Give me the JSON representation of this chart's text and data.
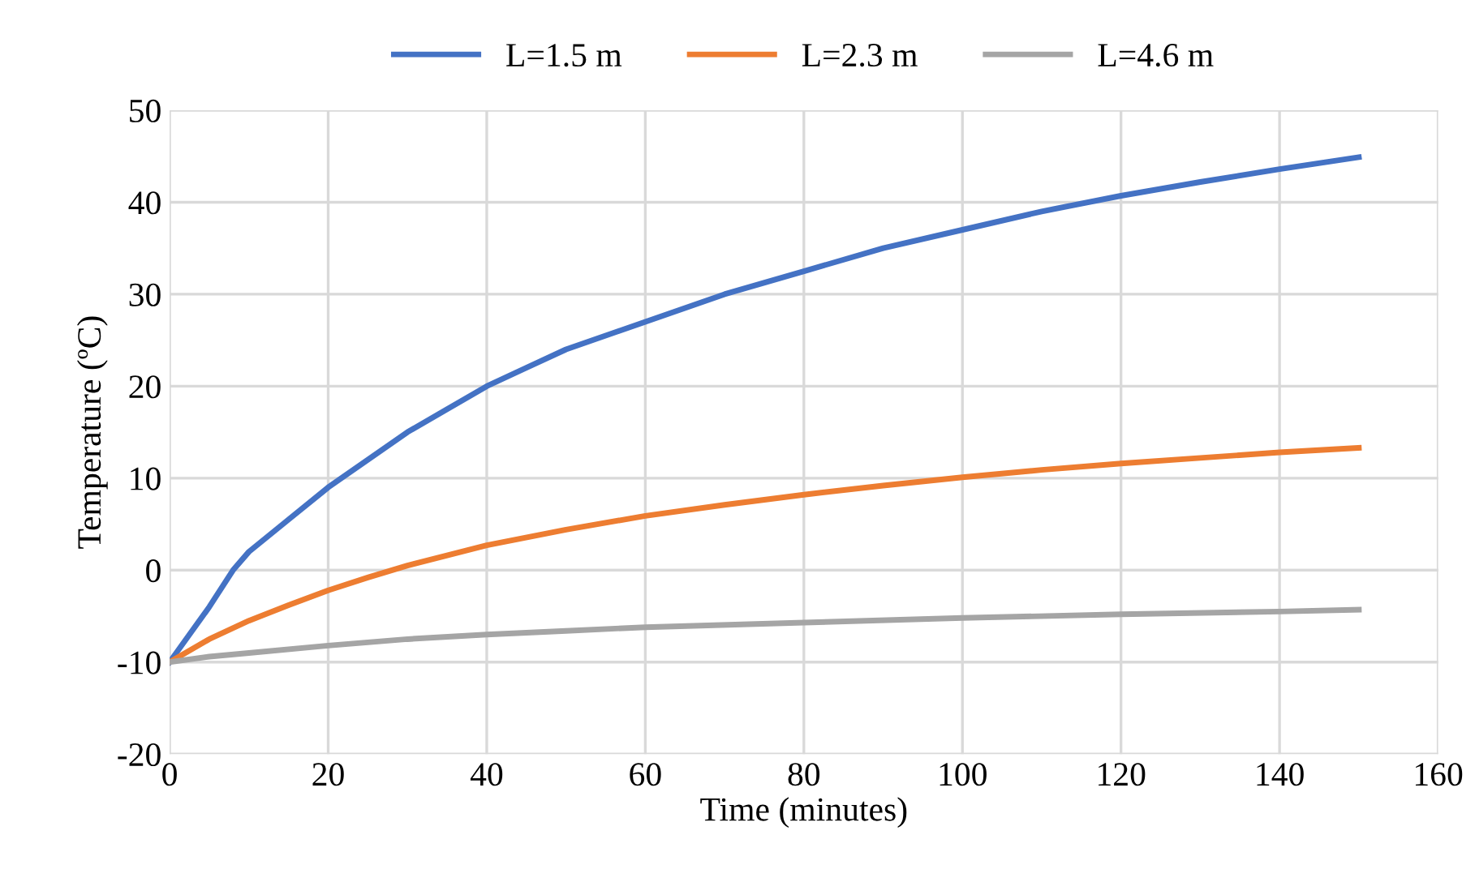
{
  "chart_data": {
    "type": "line",
    "xlabel": "Time (minutes)",
    "ylabel": "Temperature (ºC)",
    "xlim": [
      0,
      160
    ],
    "xticks": [
      0,
      20,
      40,
      60,
      80,
      100,
      120,
      140,
      160
    ],
    "ylim": [
      -20,
      50
    ],
    "yticks": [
      -20,
      -10,
      0,
      10,
      20,
      30,
      40,
      50
    ],
    "grid": true,
    "legend": "top",
    "marker": "none",
    "line_style": "solid",
    "series": [
      {
        "name": "L=1.5 m",
        "color": "#4472c4",
        "x": [
          0,
          5,
          8,
          10,
          15,
          20,
          25,
          30,
          35,
          40,
          45,
          50,
          60,
          70,
          80,
          90,
          100,
          110,
          120,
          130,
          140,
          150
        ],
        "values": [
          -10,
          -4,
          0,
          2,
          5.5,
          9,
          12,
          15,
          17.5,
          20,
          22,
          24,
          27,
          30,
          32.5,
          35,
          37,
          39,
          40.7,
          42.2,
          43.6,
          44.9
        ]
      },
      {
        "name": "L=2.3 m",
        "color": "#ed7d31",
        "x": [
          0,
          5,
          10,
          15,
          20,
          25,
          30,
          40,
          50,
          60,
          70,
          80,
          90,
          100,
          110,
          120,
          130,
          140,
          150
        ],
        "values": [
          -10,
          -7.5,
          -5.5,
          -3.8,
          -2.2,
          -0.8,
          0.5,
          2.7,
          4.4,
          5.9,
          7.1,
          8.2,
          9.2,
          10.1,
          10.9,
          11.6,
          12.2,
          12.8,
          13.3
        ]
      },
      {
        "name": "L=4.6 m",
        "color": "#a5a5a5",
        "x": [
          0,
          5,
          10,
          20,
          30,
          40,
          50,
          60,
          80,
          100,
          120,
          140,
          150
        ],
        "values": [
          -10,
          -9.4,
          -9,
          -8.2,
          -7.5,
          -7,
          -6.6,
          -6.2,
          -5.7,
          -5.2,
          -4.8,
          -4.5,
          -4.3
        ]
      }
    ]
  }
}
